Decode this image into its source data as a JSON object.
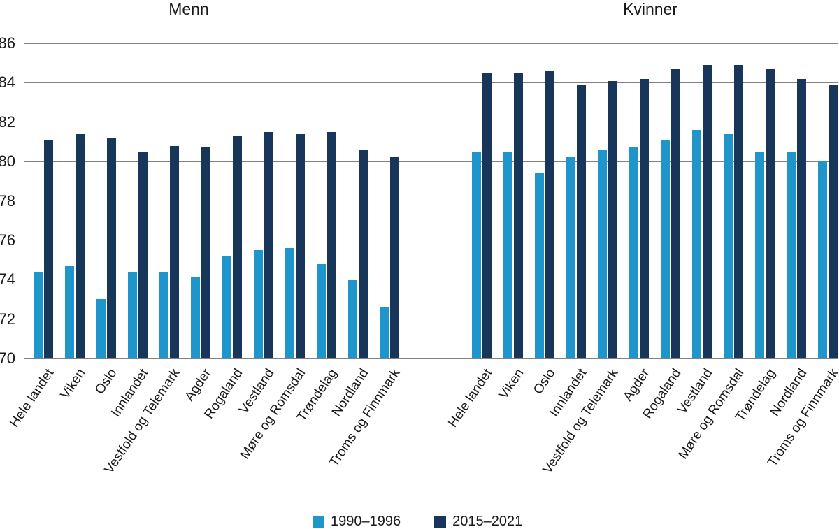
{
  "chart_data": {
    "type": "bar",
    "description": "Grouped bar chart in two panels (men and women) of life expectancy by Norwegian region for two periods",
    "categories": [
      "Hele landet",
      "Viken",
      "Oslo",
      "Innlandet",
      "Vestfold og Telemark",
      "Agder",
      "Rogaland",
      "Vestland",
      "Møre og Romsdal",
      "Trøndelag",
      "Nordland",
      "Troms og Finnmark"
    ],
    "panels": [
      {
        "title": "Menn",
        "series": [
          {
            "name": "1990–1996",
            "values": [
              74.4,
              74.7,
              73.0,
              74.4,
              74.4,
              74.1,
              75.2,
              75.5,
              75.6,
              74.8,
              74.0,
              72.6
            ]
          },
          {
            "name": "2015–2021",
            "values": [
              81.1,
              81.4,
              81.2,
              80.5,
              80.8,
              80.7,
              81.3,
              81.5,
              81.4,
              81.5,
              80.6,
              80.2
            ]
          }
        ]
      },
      {
        "title": "Kvinner",
        "series": [
          {
            "name": "1990–1996",
            "values": [
              80.5,
              80.5,
              79.4,
              80.2,
              80.6,
              80.7,
              81.1,
              81.6,
              81.4,
              80.5,
              80.5,
              80.0
            ]
          },
          {
            "name": "2015–2021",
            "values": [
              84.5,
              84.5,
              84.6,
              83.9,
              84.1,
              84.2,
              84.7,
              84.9,
              84.9,
              84.7,
              84.2,
              83.9
            ]
          }
        ]
      }
    ],
    "ylim": [
      70,
      86
    ],
    "yticks": [
      86,
      84,
      82,
      80,
      78,
      76,
      74,
      72,
      70
    ],
    "grid": "horizontal",
    "legend": {
      "position": "bottom",
      "items": [
        {
          "label": "1990–1996",
          "color": "#1E96CB"
        },
        {
          "label": "2015–2021",
          "color": "#17365A"
        }
      ]
    },
    "colors": {
      "series_1990_1996": "#1E96CB",
      "series_2015_2021": "#17365A",
      "gridline": "#828282",
      "text": "#1a1a1a"
    }
  }
}
